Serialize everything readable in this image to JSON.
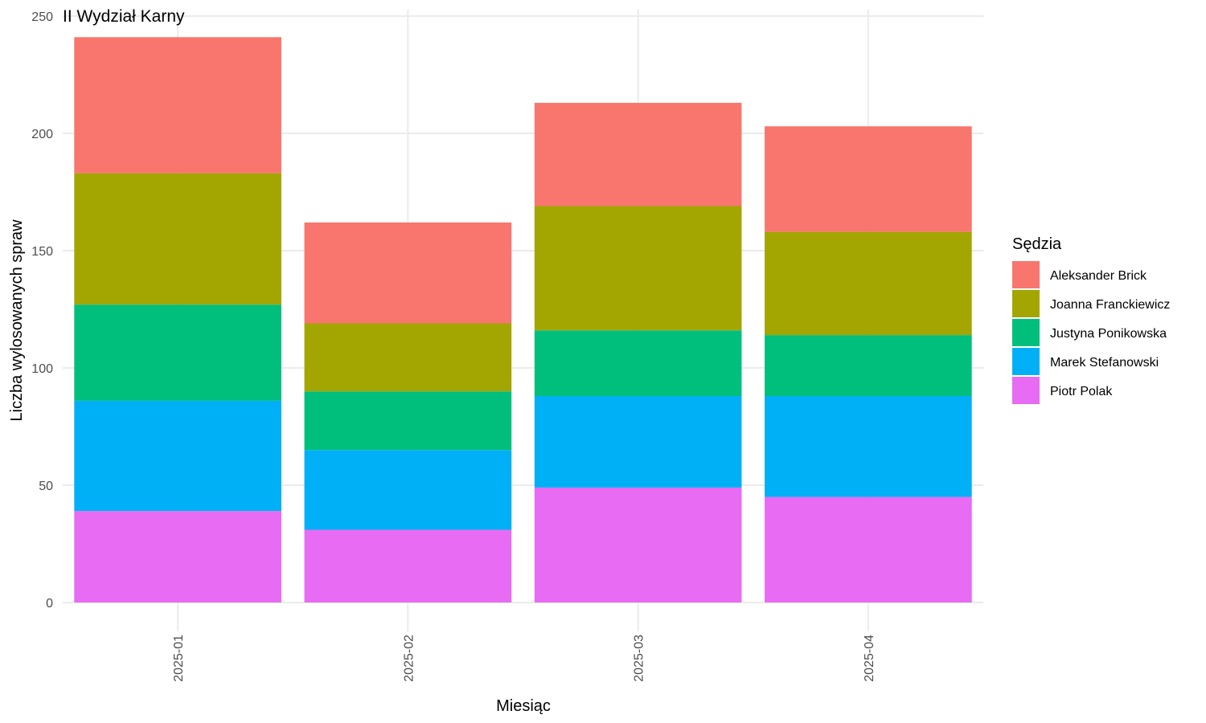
{
  "chart_data": {
    "type": "bar",
    "stacked": true,
    "title": "II Wydział Karny",
    "xlabel": "Miesiąc",
    "ylabel": "Liczba wylosowanych spraw",
    "ylim": [
      0,
      250
    ],
    "yticks": [
      0,
      50,
      100,
      150,
      200,
      250
    ],
    "grid": true,
    "categories": [
      "2025-01",
      "2025-02",
      "2025-03",
      "2025-04"
    ],
    "legend": {
      "title": "Sędzia",
      "position": "right"
    },
    "series": [
      {
        "name": "Aleksander Brick",
        "color": "#F8766D",
        "values": [
          58,
          43,
          44,
          45
        ]
      },
      {
        "name": "Joanna Franckiewicz",
        "color": "#A3A500",
        "values": [
          56,
          29,
          53,
          44
        ]
      },
      {
        "name": "Justyna Ponikowska",
        "color": "#00BF7D",
        "values": [
          41,
          25,
          28,
          26
        ]
      },
      {
        "name": "Marek Stefanowski",
        "color": "#00B0F6",
        "values": [
          47,
          34,
          39,
          43
        ]
      },
      {
        "name": "Piotr Polak",
        "color": "#E76BF3",
        "values": [
          39,
          31,
          49,
          45
        ]
      }
    ]
  }
}
